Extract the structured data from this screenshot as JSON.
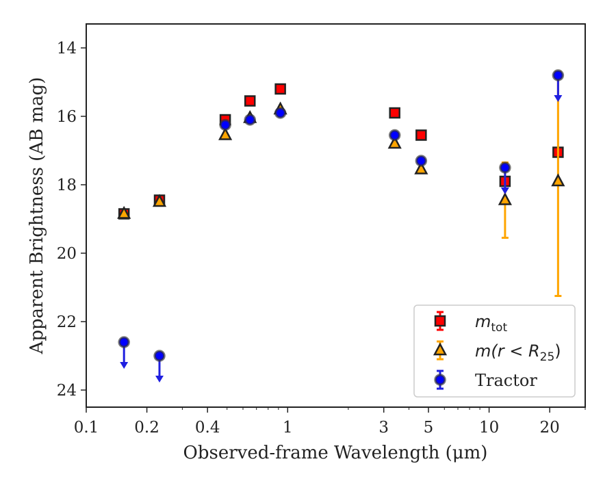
{
  "chart_data": {
    "type": "scatter",
    "title": "",
    "xlabel": "Observed-frame Wavelength (μm)",
    "ylabel": "Apparent Brightness (AB mag)",
    "xscale": "log",
    "yaxis_inverted": true,
    "xlim": [
      0.1,
      30
    ],
    "ylim": [
      24.5,
      13.3
    ],
    "xticks": [
      0.1,
      0.2,
      0.4,
      1,
      3,
      5,
      10,
      20
    ],
    "xtick_labels": [
      "0.1",
      "0.2",
      "0.4",
      "1",
      "3",
      "5",
      "10",
      "20"
    ],
    "yticks": [
      14,
      16,
      18,
      20,
      22,
      24
    ],
    "ytick_labels": [
      "14",
      "16",
      "18",
      "20",
      "22",
      "24"
    ],
    "legend_placement": "lower right",
    "grid": false,
    "series": [
      {
        "name": "m_tot",
        "legend_label": {
          "main": "m",
          "sub": "tot"
        },
        "marker": "square",
        "face_color": "#ff0000",
        "err_color": "#ff0000",
        "points": [
          {
            "x": 0.154,
            "y": 18.85,
            "yerr": 0.05
          },
          {
            "x": 0.231,
            "y": 18.45,
            "yerr": 0.05
          },
          {
            "x": 0.49,
            "y": 16.1,
            "yerr": 0.05
          },
          {
            "x": 0.65,
            "y": 15.55,
            "yerr": 0.05
          },
          {
            "x": 0.92,
            "y": 15.2,
            "yerr": 0.05
          },
          {
            "x": 3.4,
            "y": 15.9,
            "yerr": 0.05
          },
          {
            "x": 4.6,
            "y": 16.55,
            "yerr": 0.05
          },
          {
            "x": 12.0,
            "y": 17.9,
            "yerr": 0.1
          },
          {
            "x": 22.0,
            "y": 17.05,
            "yerr": 0.1
          }
        ]
      },
      {
        "name": "m(r<R25)",
        "legend_label": {
          "main": "m(r < R",
          "sub": "25",
          "tail": ")"
        },
        "marker": "triangle",
        "face_color": "#ffa500",
        "err_color": "#ffa500",
        "points": [
          {
            "x": 0.154,
            "y": 18.85,
            "yerr": 0.05
          },
          {
            "x": 0.231,
            "y": 18.5,
            "yerr": 0.05
          },
          {
            "x": 0.49,
            "y": 16.55,
            "yerr": 0.05
          },
          {
            "x": 0.65,
            "y": 16.05,
            "yerr": 0.05
          },
          {
            "x": 0.92,
            "y": 15.8,
            "yerr": 0.05
          },
          {
            "x": 3.4,
            "y": 16.8,
            "yerr": 0.05
          },
          {
            "x": 4.6,
            "y": 17.55,
            "yerr": 0.05
          },
          {
            "x": 12.0,
            "y": 18.45,
            "yerr_low": 1.1,
            "yerr_high": 1.1
          },
          {
            "x": 22.0,
            "y": 17.9,
            "yerr_low": 3.35,
            "yerr_high": 3.2
          }
        ]
      },
      {
        "name": "Tractor",
        "legend_label": {
          "main": "Tractor"
        },
        "marker": "circle",
        "face_color": "#0000ff",
        "err_color": "#1f1fe0",
        "points": [
          {
            "x": 0.154,
            "y": 22.6,
            "upper_limit": true
          },
          {
            "x": 0.231,
            "y": 23.0,
            "upper_limit": true
          },
          {
            "x": 0.49,
            "y": 16.25,
            "yerr": 0.05
          },
          {
            "x": 0.65,
            "y": 16.1,
            "yerr": 0.05
          },
          {
            "x": 0.92,
            "y": 15.9,
            "yerr": 0.05
          },
          {
            "x": 3.4,
            "y": 16.55,
            "yerr": 0.05
          },
          {
            "x": 4.6,
            "y": 17.3,
            "yerr": 0.05
          },
          {
            "x": 12.0,
            "y": 17.5,
            "upper_limit": true
          },
          {
            "x": 22.0,
            "y": 14.8,
            "upper_limit": true
          }
        ]
      }
    ]
  }
}
